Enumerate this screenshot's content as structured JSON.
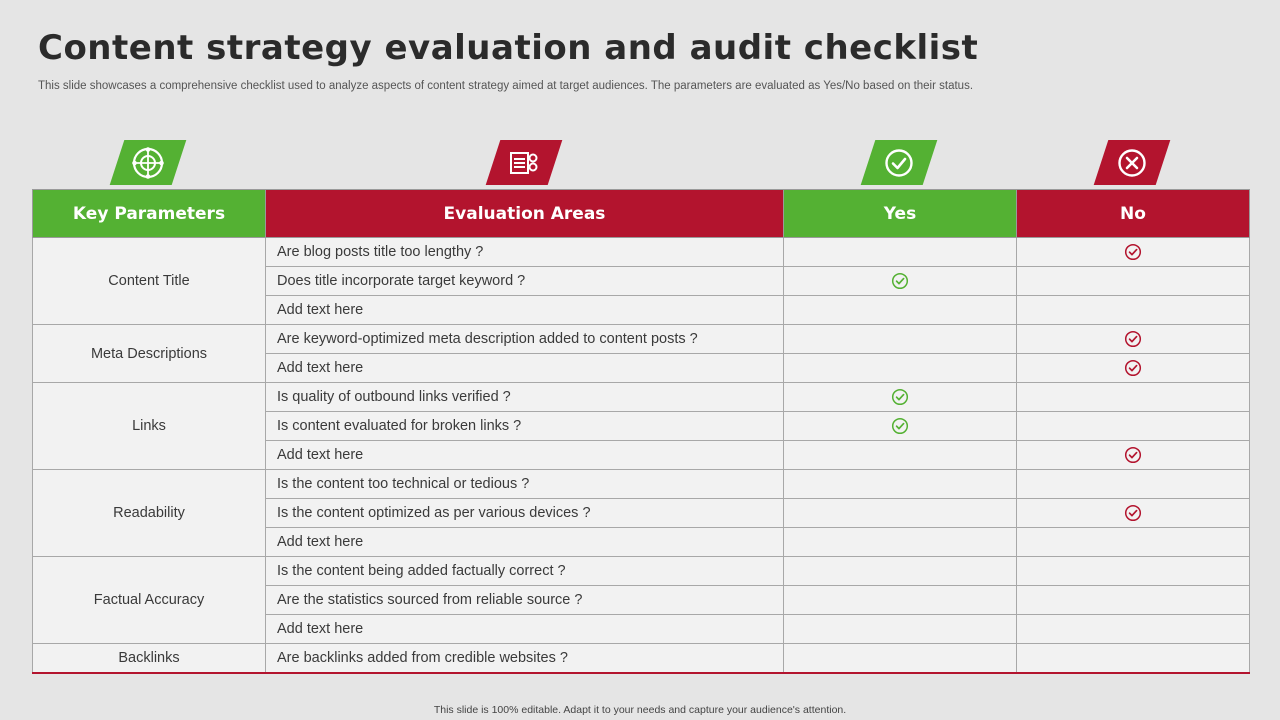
{
  "title": "Content strategy evaluation and audit checklist",
  "subtitle": "This slide showcases a comprehensive checklist used to analyze aspects of content strategy aimed at target audiences. The parameters are evaluated as Yes/No based on their status.",
  "icons": {
    "key_parameters": "network-globe-icon",
    "evaluation_areas": "list-settings-icon",
    "yes": "check-circle-icon",
    "no": "x-circle-icon"
  },
  "colors": {
    "green": "#54b133",
    "red": "#b3142e",
    "yes_mark": "#54b133",
    "no_mark": "#b3142e"
  },
  "headers": {
    "key_parameters": "Key Parameters",
    "evaluation_areas": "Evaluation Areas",
    "yes": "Yes",
    "no": "No"
  },
  "groups": [
    {
      "parameter": "Content Title",
      "rows": [
        {
          "area": "Are blog posts title too lengthy ?",
          "mark": "no"
        },
        {
          "area": "Does title incorporate target keyword ?",
          "mark": "yes"
        },
        {
          "area": "Add text here",
          "mark": ""
        }
      ]
    },
    {
      "parameter": "Meta Descriptions",
      "rows": [
        {
          "area": "Are keyword-optimized meta description added to content posts ?",
          "mark": "no"
        },
        {
          "area": "Add text here",
          "mark": "no"
        }
      ]
    },
    {
      "parameter": "Links",
      "rows": [
        {
          "area": "Is quality of outbound links verified ?",
          "mark": "yes"
        },
        {
          "area": "Is content evaluated for broken links ?",
          "mark": "yes"
        },
        {
          "area": "Add text here",
          "mark": "no"
        }
      ]
    },
    {
      "parameter": "Readability",
      "rows": [
        {
          "area": "Is the content too technical or tedious ?",
          "mark": ""
        },
        {
          "area": "Is the content optimized as per various devices ?",
          "mark": "no"
        },
        {
          "area": "Add text here",
          "mark": ""
        }
      ]
    },
    {
      "parameter": "Factual Accuracy",
      "rows": [
        {
          "area": "Is the content being added factually correct ?",
          "mark": ""
        },
        {
          "area": "Are the statistics sourced from reliable source ?",
          "mark": ""
        },
        {
          "area": "Add text here",
          "mark": ""
        }
      ]
    },
    {
      "parameter": "Backlinks",
      "rows": [
        {
          "area": "Are backlinks added from credible websites ?",
          "mark": ""
        }
      ]
    }
  ],
  "footer": "This slide is 100% editable.  Adapt it to your needs and capture your audience's attention."
}
